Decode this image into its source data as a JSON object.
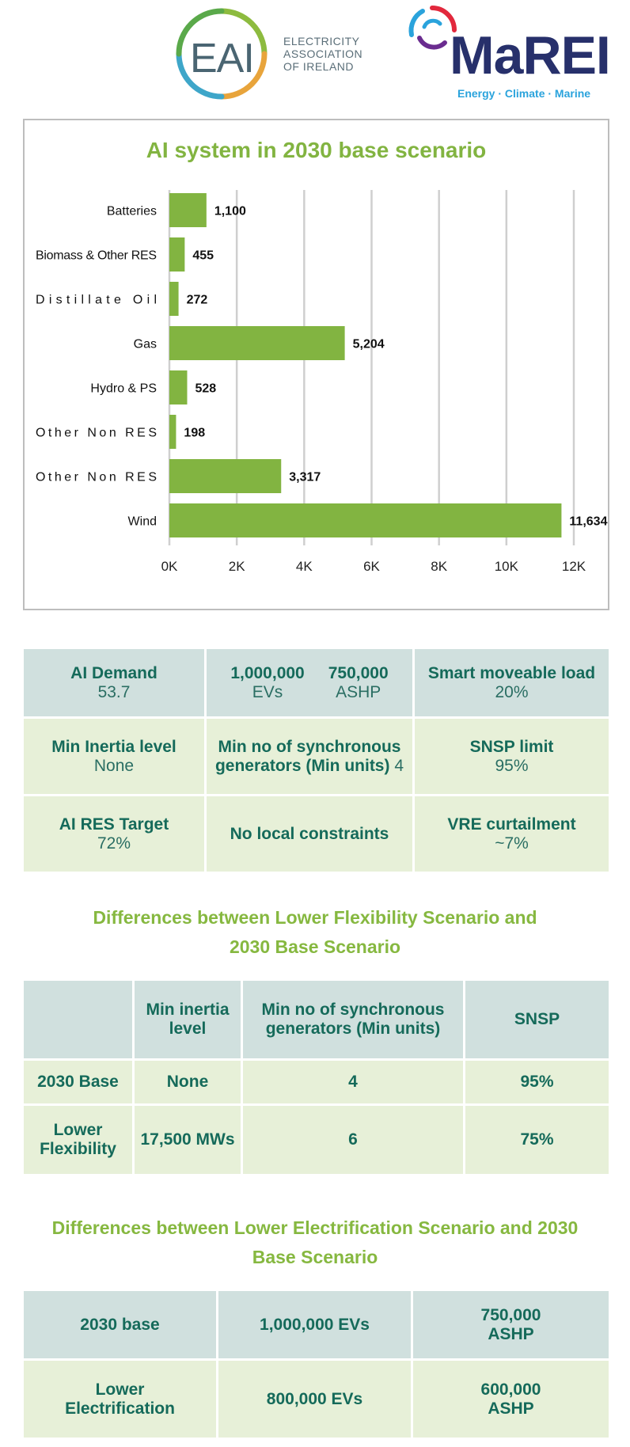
{
  "logos": {
    "eai": {
      "letters": "EAI",
      "line1": "ELECTRICITY",
      "line2": "ASSOCIATION",
      "line3": "OF IRELAND"
    },
    "marei": {
      "word": "MaREI",
      "tagline": "Energy · Climate · Marine"
    },
    "colors": {
      "eai_green": "#8dbb3f",
      "eai_blue": "#3ea6c9",
      "eai_orange": "#e8a43b",
      "marei_navy": "#27306b",
      "marei_cyan": "#2aa3dc"
    }
  },
  "chart_data": {
    "type": "bar",
    "orientation": "horizontal",
    "title": "AI system in 2030 base scenario",
    "categories": [
      "Batteries",
      "Biomass & Other RES",
      "Distillate Oil",
      "Gas",
      "Hydro & PS",
      "Other Non RES",
      "Other Non RES",
      "Wind"
    ],
    "values": [
      1100,
      455,
      272,
      5204,
      528,
      198,
      3317,
      11634
    ],
    "value_labels": [
      "1,100",
      "455",
      "272",
      "5,204",
      "528",
      "198",
      "3,317",
      "11,634"
    ],
    "x_ticks": [
      "0K",
      "2K",
      "4K",
      "6K",
      "8K",
      "10K",
      "12K"
    ],
    "xlim": [
      0,
      12000
    ],
    "grid": true,
    "bar_color": "#82b441"
  },
  "summary_table": {
    "r1": {
      "demand_label": "AI Demand",
      "demand_value": "53.7",
      "evs_value": "1,000,000",
      "evs_label": "EVs",
      "ashp_value": "750,000",
      "ashp_label": "ASHP",
      "load_label": "Smart moveable load",
      "load_value": "20%"
    },
    "r2": {
      "inertia_label": "Min Inertia level",
      "inertia_value": "None",
      "sync_label_1": "Min no of synchronous",
      "sync_label_2": "generators (Min units)",
      "sync_value": "4",
      "snsp_label": "SNSP limit",
      "snsp_value": "95%"
    },
    "r3": {
      "res_label": "AI RES Target",
      "res_value": "72%",
      "local_label": "No local constraints",
      "vre_label": "VRE curtailment",
      "vre_value": "~7%"
    }
  },
  "flex_section": {
    "title_1": "Differences between Lower Flexibility Scenario and",
    "title_2": "2030 Base Scenario",
    "headers": [
      "",
      "Min inertia level",
      "Min no of synchronous generators (Min units)",
      "SNSP"
    ],
    "rows": [
      [
        "2030 Base",
        "None",
        "4",
        "95%"
      ],
      [
        "Lower Flexibility",
        "17,500 MWs",
        "6",
        "75%"
      ]
    ]
  },
  "elec_section": {
    "title_1": "Differences between Lower Electrification Scenario and 2030",
    "title_2": "Base Scenario",
    "rows": [
      [
        "2030 base",
        "1,000,000 EVs",
        "750,000 ASHP"
      ],
      [
        "Lower Electrification",
        "800,000 EVs",
        "600,000 ASHP"
      ]
    ]
  }
}
